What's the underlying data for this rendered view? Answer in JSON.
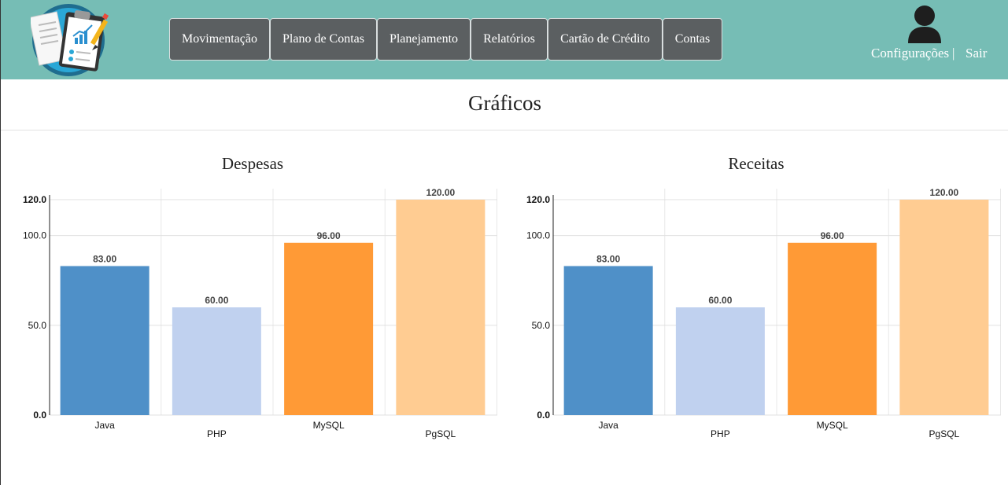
{
  "header": {
    "nav": [
      {
        "label": "Movimentação"
      },
      {
        "label": "Plano de Contas"
      },
      {
        "label": "Planejamento"
      },
      {
        "label": "Relatórios"
      },
      {
        "label": "Cartão de Crédito"
      },
      {
        "label": "Contas"
      }
    ],
    "user": {
      "settings_label": "Configurações",
      "separator": "|",
      "logout_label": "Sair"
    }
  },
  "page": {
    "title": "Gráficos"
  },
  "chart_data": [
    {
      "type": "bar",
      "title": "Despesas",
      "categories": [
        "Java",
        "PHP",
        "MySQL",
        "PgSQL"
      ],
      "values": [
        83,
        60,
        96,
        120
      ],
      "value_labels": [
        "83.00",
        "60.00",
        "96.00",
        "120.00"
      ],
      "colors": [
        "#4f90c8",
        "#c0d1ef",
        "#ff9a36",
        "#ffcc92"
      ],
      "yticks": [
        0,
        50,
        100,
        120
      ],
      "ytick_labels": [
        "0.0",
        "50.0",
        "100.0",
        "120.0"
      ],
      "ylim": [
        0,
        120
      ],
      "grid": true
    },
    {
      "type": "bar",
      "title": "Receitas",
      "categories": [
        "Java",
        "PHP",
        "MySQL",
        "PgSQL"
      ],
      "values": [
        83,
        60,
        96,
        120
      ],
      "value_labels": [
        "83.00",
        "60.00",
        "96.00",
        "120.00"
      ],
      "colors": [
        "#4f90c8",
        "#c0d1ef",
        "#ff9a36",
        "#ffcc92"
      ],
      "yticks": [
        0,
        50,
        100,
        120
      ],
      "ytick_labels": [
        "0.0",
        "50.0",
        "100.0",
        "120.0"
      ],
      "ylim": [
        0,
        120
      ],
      "grid": true
    }
  ]
}
